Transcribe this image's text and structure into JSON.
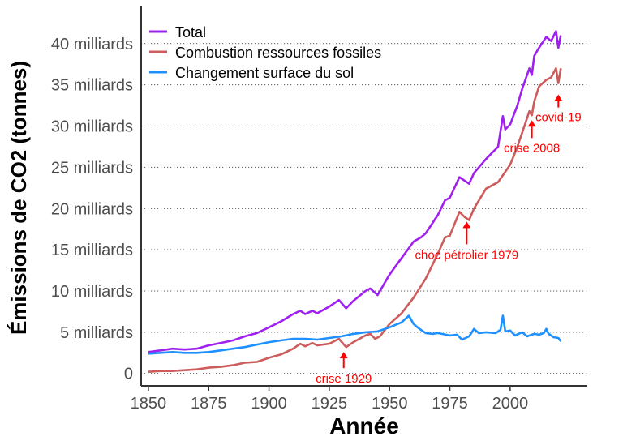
{
  "chart_data": {
    "type": "line",
    "xlabel": "Année",
    "ylabel": "Émissions de CO2 (tonnes)",
    "xlim": [
      1847,
      2032
    ],
    "ylim": [
      -1.5,
      44.5
    ],
    "x_ticks": [
      1850,
      1875,
      1900,
      1925,
      1950,
      1975,
      2000
    ],
    "y_ticks": [
      {
        "value": 0,
        "label": "0"
      },
      {
        "value": 5,
        "label": "5 milliards"
      },
      {
        "value": 10,
        "label": "10 milliards"
      },
      {
        "value": 15,
        "label": "15 milliards"
      },
      {
        "value": 20,
        "label": "20 milliards"
      },
      {
        "value": 25,
        "label": "25 milliards"
      },
      {
        "value": 30,
        "label": "30 milliards"
      },
      {
        "value": 35,
        "label": "35 milliards"
      },
      {
        "value": 40,
        "label": "40 milliards"
      }
    ],
    "grid": "horizontal dotted",
    "legend_position": "top-left",
    "series": [
      {
        "name": "Total",
        "color": "#a020f0",
        "points": [
          [
            1850,
            2.6
          ],
          [
            1855,
            2.8
          ],
          [
            1860,
            3.0
          ],
          [
            1865,
            2.9
          ],
          [
            1870,
            3.0
          ],
          [
            1875,
            3.4
          ],
          [
            1880,
            3.7
          ],
          [
            1885,
            4.0
          ],
          [
            1890,
            4.5
          ],
          [
            1895,
            4.9
          ],
          [
            1900,
            5.6
          ],
          [
            1905,
            6.3
          ],
          [
            1910,
            7.2
          ],
          [
            1913,
            7.6
          ],
          [
            1915,
            7.2
          ],
          [
            1918,
            7.6
          ],
          [
            1920,
            7.3
          ],
          [
            1925,
            8.1
          ],
          [
            1929,
            8.9
          ],
          [
            1932,
            7.9
          ],
          [
            1935,
            8.8
          ],
          [
            1940,
            10.0
          ],
          [
            1942,
            10.3
          ],
          [
            1945,
            9.5
          ],
          [
            1948,
            11.0
          ],
          [
            1950,
            12.0
          ],
          [
            1955,
            14.0
          ],
          [
            1958,
            15.2
          ],
          [
            1960,
            16.0
          ],
          [
            1963,
            16.5
          ],
          [
            1965,
            17.0
          ],
          [
            1970,
            19.2
          ],
          [
            1973,
            21.0
          ],
          [
            1975,
            21.3
          ],
          [
            1979,
            23.8
          ],
          [
            1981,
            23.4
          ],
          [
            1983,
            23.0
          ],
          [
            1985,
            24.3
          ],
          [
            1990,
            26.0
          ],
          [
            1995,
            27.5
          ],
          [
            1997,
            31.2
          ],
          [
            1998,
            29.6
          ],
          [
            2000,
            30.2
          ],
          [
            2003,
            32.5
          ],
          [
            2005,
            34.5
          ],
          [
            2008,
            37.0
          ],
          [
            2009,
            36.2
          ],
          [
            2010,
            38.5
          ],
          [
            2012,
            39.5
          ],
          [
            2015,
            40.8
          ],
          [
            2017,
            40.3
          ],
          [
            2019,
            41.5
          ],
          [
            2020,
            39.5
          ],
          [
            2021,
            41.0
          ]
        ]
      },
      {
        "name": "Combustion ressources fossiles",
        "color": "#cd5c5c",
        "points": [
          [
            1850,
            0.2
          ],
          [
            1855,
            0.3
          ],
          [
            1860,
            0.3
          ],
          [
            1865,
            0.4
          ],
          [
            1870,
            0.5
          ],
          [
            1875,
            0.7
          ],
          [
            1880,
            0.8
          ],
          [
            1885,
            1.0
          ],
          [
            1890,
            1.3
          ],
          [
            1895,
            1.4
          ],
          [
            1900,
            1.9
          ],
          [
            1905,
            2.3
          ],
          [
            1910,
            3.0
          ],
          [
            1913,
            3.6
          ],
          [
            1915,
            3.3
          ],
          [
            1918,
            3.7
          ],
          [
            1920,
            3.4
          ],
          [
            1925,
            3.6
          ],
          [
            1929,
            4.2
          ],
          [
            1932,
            3.2
          ],
          [
            1935,
            3.8
          ],
          [
            1940,
            4.6
          ],
          [
            1942,
            4.8
          ],
          [
            1944,
            4.2
          ],
          [
            1946,
            4.5
          ],
          [
            1950,
            6.0
          ],
          [
            1955,
            7.3
          ],
          [
            1960,
            9.2
          ],
          [
            1965,
            11.5
          ],
          [
            1970,
            14.5
          ],
          [
            1973,
            16.5
          ],
          [
            1975,
            16.7
          ],
          [
            1979,
            19.6
          ],
          [
            1981,
            19.0
          ],
          [
            1983,
            18.6
          ],
          [
            1985,
            20.0
          ],
          [
            1990,
            22.4
          ],
          [
            1995,
            23.2
          ],
          [
            2000,
            25.3
          ],
          [
            2003,
            27.5
          ],
          [
            2005,
            29.2
          ],
          [
            2008,
            31.8
          ],
          [
            2009,
            31.3
          ],
          [
            2010,
            33.0
          ],
          [
            2012,
            34.8
          ],
          [
            2015,
            35.6
          ],
          [
            2017,
            35.9
          ],
          [
            2019,
            37.0
          ],
          [
            2020,
            35.2
          ],
          [
            2021,
            37.0
          ]
        ]
      },
      {
        "name": "Changement surface du sol",
        "color": "#1e90ff",
        "points": [
          [
            1850,
            2.4
          ],
          [
            1855,
            2.5
          ],
          [
            1860,
            2.6
          ],
          [
            1865,
            2.5
          ],
          [
            1870,
            2.5
          ],
          [
            1875,
            2.6
          ],
          [
            1880,
            2.8
          ],
          [
            1885,
            3.0
          ],
          [
            1890,
            3.2
          ],
          [
            1895,
            3.5
          ],
          [
            1900,
            3.8
          ],
          [
            1905,
            4.0
          ],
          [
            1910,
            4.2
          ],
          [
            1915,
            4.2
          ],
          [
            1920,
            4.1
          ],
          [
            1925,
            4.3
          ],
          [
            1930,
            4.5
          ],
          [
            1935,
            4.8
          ],
          [
            1940,
            5.0
          ],
          [
            1945,
            5.1
          ],
          [
            1950,
            5.6
          ],
          [
            1955,
            6.2
          ],
          [
            1958,
            7.0
          ],
          [
            1960,
            6.0
          ],
          [
            1962,
            5.5
          ],
          [
            1965,
            4.9
          ],
          [
            1968,
            4.8
          ],
          [
            1970,
            4.9
          ],
          [
            1975,
            4.6
          ],
          [
            1978,
            4.7
          ],
          [
            1980,
            4.1
          ],
          [
            1983,
            4.5
          ],
          [
            1985,
            5.4
          ],
          [
            1987,
            4.9
          ],
          [
            1990,
            5.0
          ],
          [
            1994,
            4.9
          ],
          [
            1996,
            5.3
          ],
          [
            1997,
            7.0
          ],
          [
            1998,
            5.1
          ],
          [
            2000,
            5.2
          ],
          [
            2002,
            4.6
          ],
          [
            2005,
            5.0
          ],
          [
            2007,
            4.5
          ],
          [
            2010,
            4.8
          ],
          [
            2012,
            4.7
          ],
          [
            2014,
            4.9
          ],
          [
            2015,
            5.4
          ],
          [
            2016,
            4.8
          ],
          [
            2018,
            4.4
          ],
          [
            2020,
            4.3
          ],
          [
            2021,
            3.9
          ]
        ]
      }
    ],
    "annotations": [
      {
        "text": "crise 1929",
        "x": 1931,
        "y": 3.2
      },
      {
        "text": "choc pétrolier 1979",
        "x": 1982,
        "y": 19.0
      },
      {
        "text": "crise 2008",
        "x": 2009,
        "y": 31.3
      },
      {
        "text": "covid-19",
        "x": 2020,
        "y": 35.2
      }
    ]
  }
}
